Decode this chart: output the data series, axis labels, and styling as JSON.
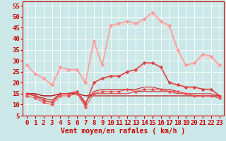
{
  "x": [
    0,
    1,
    2,
    3,
    4,
    5,
    6,
    7,
    8,
    9,
    10,
    11,
    12,
    13,
    14,
    15,
    16,
    17,
    18,
    19,
    20,
    21,
    22,
    23
  ],
  "series": [
    {
      "color": "#ffaaaa",
      "lw": 0.8,
      "marker": null,
      "ms": 0,
      "values": [
        28,
        24,
        22,
        19,
        27,
        26,
        26,
        20,
        39,
        28,
        46,
        47,
        48,
        47,
        49,
        52,
        48,
        46,
        35,
        28,
        29,
        33,
        32,
        28
      ]
    },
    {
      "color": "#ffcccc",
      "lw": 0.8,
      "marker": null,
      "ms": 0,
      "values": [
        28,
        24,
        22,
        18,
        26,
        25,
        26,
        19,
        37,
        28,
        45,
        46,
        47,
        46,
        48,
        51,
        47,
        45,
        34,
        28,
        28,
        32,
        31,
        27
      ]
    },
    {
      "color": "#ff9999",
      "lw": 1.0,
      "marker": "D",
      "ms": 2.5,
      "values": [
        28,
        24,
        22,
        19,
        27,
        26,
        26,
        20,
        39,
        28,
        46,
        47,
        48,
        47,
        49,
        52,
        48,
        46,
        35,
        28,
        29,
        33,
        32,
        28
      ]
    },
    {
      "color": "#ffcccc",
      "lw": 0.8,
      "marker": null,
      "ms": 0,
      "values": [
        15,
        14,
        12,
        11,
        14,
        15,
        16,
        10,
        20,
        22,
        23,
        23,
        24,
        25,
        28,
        29,
        27,
        20,
        19,
        18,
        17,
        17,
        17,
        14
      ]
    },
    {
      "color": "#dd4444",
      "lw": 1.2,
      "marker": "D",
      "ms": 2.5,
      "values": [
        15,
        14,
        12,
        11,
        15,
        15,
        16,
        10,
        20,
        22,
        23,
        23,
        25,
        26,
        29,
        29,
        27,
        20,
        19,
        18,
        18,
        17,
        17,
        14
      ]
    },
    {
      "color": "#cc2222",
      "lw": 0.8,
      "marker": null,
      "ms": 0,
      "values": [
        15,
        14,
        13,
        12,
        15,
        15,
        16,
        11,
        16,
        17,
        17,
        17,
        17,
        17,
        18,
        18,
        17,
        17,
        16,
        15,
        14,
        14,
        14,
        13
      ]
    },
    {
      "color": "#ee5555",
      "lw": 0.8,
      "marker": "D",
      "ms": 2.5,
      "values": [
        14,
        13,
        11,
        10,
        14,
        14,
        15,
        9,
        15,
        16,
        16,
        16,
        17,
        16,
        17,
        17,
        17,
        16,
        16,
        15,
        14,
        14,
        14,
        13
      ]
    },
    {
      "color": "#cc3333",
      "lw": 0.8,
      "marker": null,
      "ms": 0,
      "values": [
        15,
        15,
        14,
        14,
        15,
        15,
        15,
        14,
        15,
        15,
        15,
        15,
        15,
        16,
        16,
        16,
        16,
        16,
        15,
        15,
        15,
        15,
        15,
        14
      ]
    },
    {
      "color": "#aa1111",
      "lw": 0.8,
      "marker": null,
      "ms": 0,
      "values": [
        15,
        15,
        14,
        14,
        15,
        15,
        15,
        14,
        14,
        14,
        14,
        14,
        14,
        14,
        14,
        14,
        14,
        14,
        14,
        14,
        14,
        14,
        14,
        14
      ]
    }
  ],
  "xlabel": "Vent moyen/en rafales ( km/h )",
  "ylim": [
    5,
    57
  ],
  "xlim": [
    -0.5,
    23.5
  ],
  "yticks": [
    5,
    10,
    15,
    20,
    25,
    30,
    35,
    40,
    45,
    50,
    55
  ],
  "xticks": [
    0,
    1,
    2,
    3,
    4,
    5,
    6,
    7,
    8,
    9,
    10,
    11,
    12,
    13,
    14,
    15,
    16,
    17,
    18,
    19,
    20,
    21,
    22,
    23
  ],
  "bg_color": "#cce8e8",
  "grid_color": "#ffffff",
  "text_color": "#cc0000",
  "xlabel_fontsize": 7,
  "tick_fontsize": 6.5
}
